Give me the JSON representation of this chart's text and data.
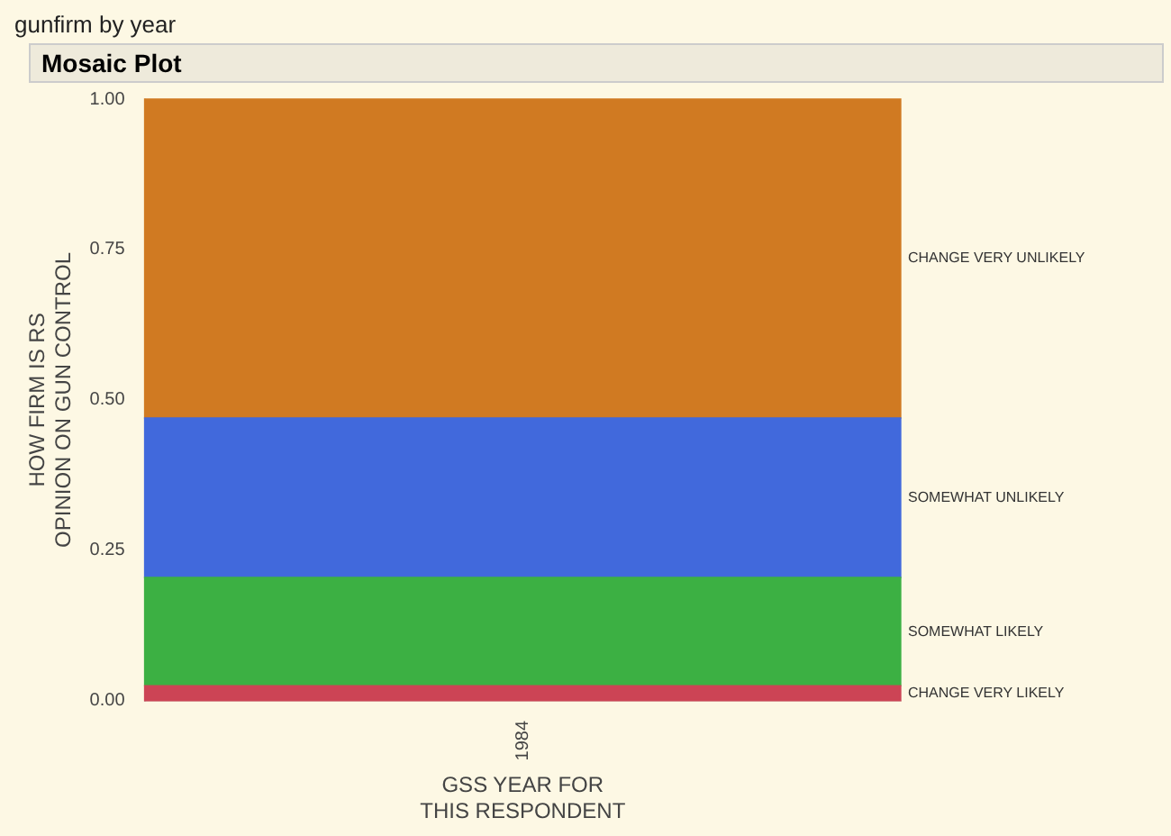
{
  "chart_data": {
    "type": "bar",
    "stacked": true,
    "title": "gunfirm by year",
    "subtitle": "Mosaic Plot",
    "xlabel": "GSS YEAR FOR\nTHIS RESPONDENT",
    "ylabel": "HOW FIRM IS RS\nOPINION ON GUN CONTROL",
    "categories": [
      "1984"
    ],
    "series": [
      {
        "name": "CHANGE VERY LIKELY",
        "color": "#cc4455",
        "values": [
          0.025
        ]
      },
      {
        "name": "SOMEWHAT LIKELY",
        "color": "#3cb043",
        "values": [
          0.18
        ]
      },
      {
        "name": "SOMEWHAT UNLIKELY",
        "color": "#4169dc",
        "values": [
          0.265
        ]
      },
      {
        "name": "CHANGE VERY UNLIKELY",
        "color": "#d07a22",
        "values": [
          0.53
        ]
      }
    ],
    "ylim": [
      0,
      1
    ],
    "yticks": [
      {
        "value": 0,
        "label": "0.00"
      },
      {
        "value": 0.25,
        "label": "0.25"
      },
      {
        "value": 0.5,
        "label": "0.50"
      },
      {
        "value": 0.75,
        "label": "0.75"
      },
      {
        "value": 1,
        "label": "1.00"
      }
    ],
    "grid": false,
    "legend": false
  }
}
